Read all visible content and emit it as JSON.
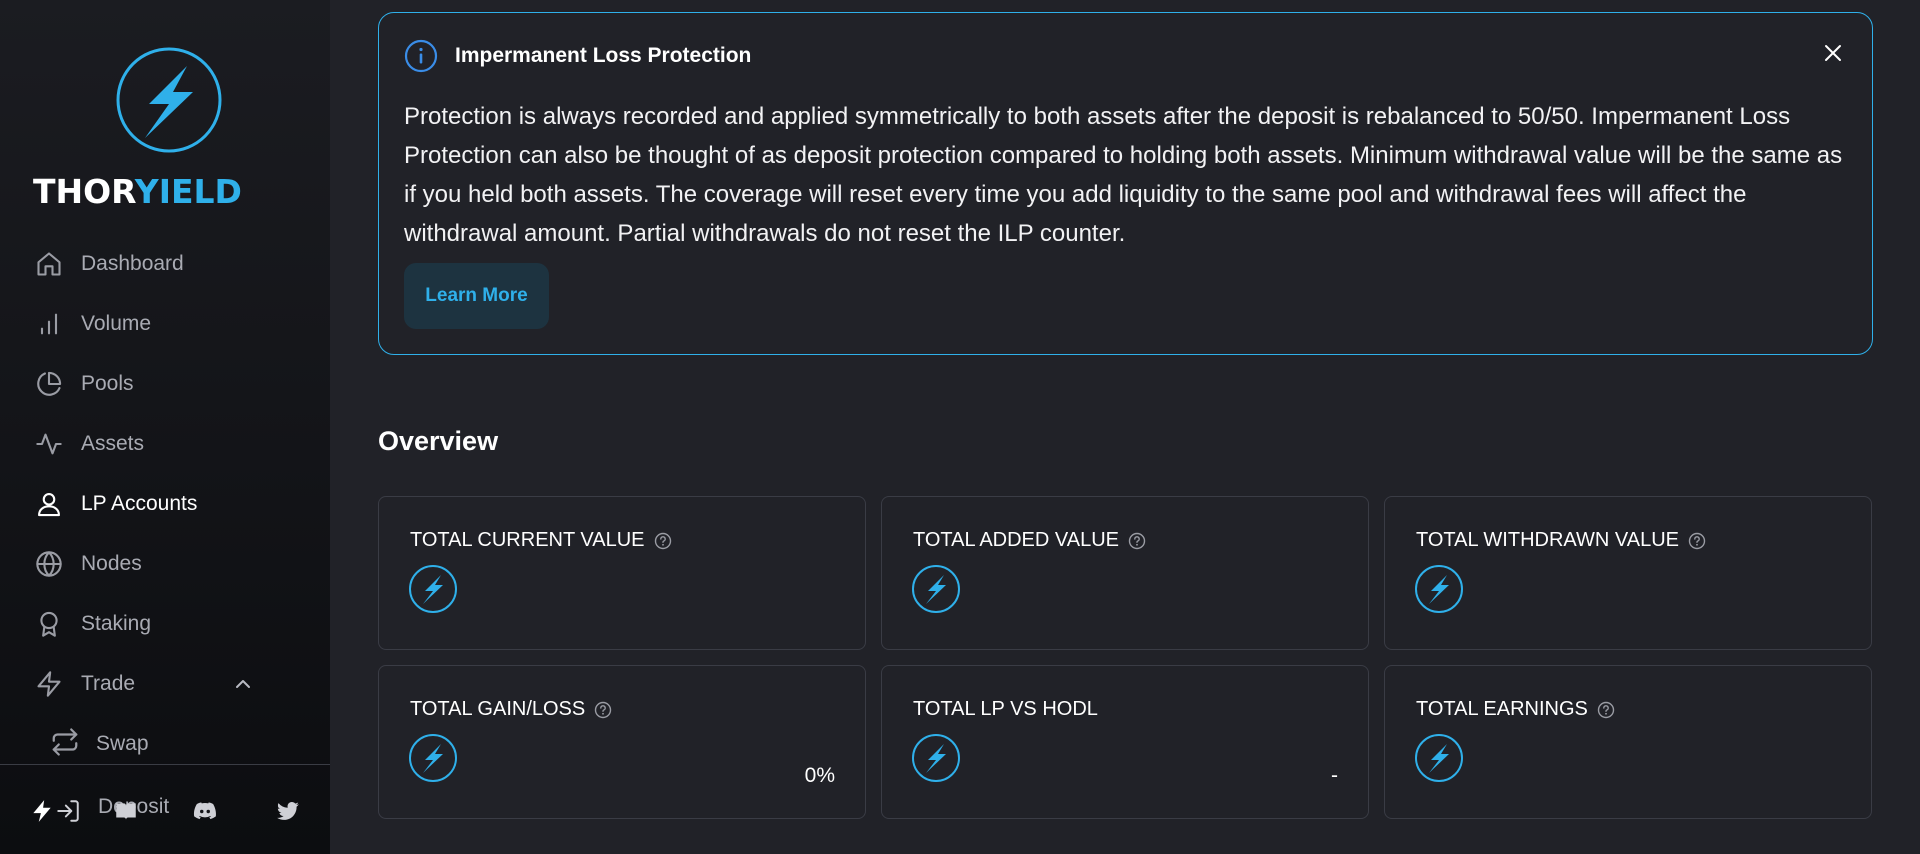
{
  "brand": {
    "word1": "THOR",
    "word2": "YIELD",
    "accent": "#2fb0ea"
  },
  "nav": {
    "items": [
      {
        "label": "Dashboard",
        "icon": "home-icon"
      },
      {
        "label": "Volume",
        "icon": "bar-chart-icon"
      },
      {
        "label": "Pools",
        "icon": "pie-chart-icon"
      },
      {
        "label": "Assets",
        "icon": "activity-icon"
      },
      {
        "label": "LP Accounts",
        "icon": "user-icon",
        "active": true
      },
      {
        "label": "Nodes",
        "icon": "globe-icon"
      },
      {
        "label": "Staking",
        "icon": "award-icon"
      },
      {
        "label": "Trade",
        "icon": "lightning-icon",
        "expanded": true
      }
    ],
    "sub_items": [
      {
        "label": "Swap",
        "icon": "swap-icon"
      },
      {
        "label": "Deposit",
        "icon": "log-in-icon"
      }
    ]
  },
  "footer": {
    "icons": [
      "thorchain-icon",
      "docs-icon",
      "discord-icon",
      "twitter-icon"
    ]
  },
  "info": {
    "title": "Impermanent Loss Protection",
    "body": "Protection is always recorded and applied symmetrically to both assets after the deposit is rebalanced to 50/50. Impermanent Loss Protection can also be thought of as deposit protection compared to holding both assets. Minimum withdrawal value will be the same as if you held both assets. The coverage will reset every time you add liquidity to the same pool and withdrawal fees will affect the withdrawal amount. Partial withdrawals do not reset the ILP counter.",
    "button_label": "Learn More"
  },
  "overview": {
    "title": "Overview",
    "cards": [
      {
        "label": "TOTAL CURRENT VALUE",
        "help": true,
        "value": ""
      },
      {
        "label": "TOTAL ADDED VALUE",
        "help": true,
        "value": ""
      },
      {
        "label": "TOTAL WITHDRAWN VALUE",
        "help": true,
        "value": ""
      },
      {
        "label": "TOTAL GAIN/LOSS",
        "help": true,
        "value": "0%"
      },
      {
        "label": "TOTAL LP VS HODL",
        "help": false,
        "value": "-"
      },
      {
        "label": "TOTAL EARNINGS",
        "help": true,
        "value": ""
      }
    ]
  }
}
